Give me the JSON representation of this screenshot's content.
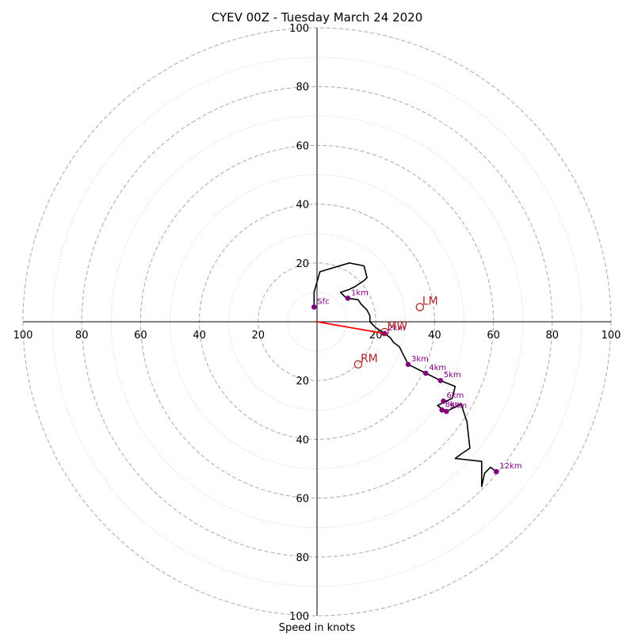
{
  "chart_data": {
    "type": "hodograph",
    "title": "CYEV 00Z - Tuesday March 24 2020",
    "xlabel": "Speed in knots",
    "range": 100,
    "ring_step": 20,
    "minor_ring_step": 10,
    "x_ticks": [
      "100",
      "80",
      "60",
      "40",
      "20",
      "20",
      "40",
      "60",
      "80",
      "100"
    ],
    "y_ticks": [
      "100",
      "80",
      "60",
      "40",
      "20",
      "20",
      "40",
      "60",
      "80",
      "100"
    ],
    "trace": [
      [
        -1,
        5
      ],
      [
        -1,
        10
      ],
      [
        1,
        17
      ],
      [
        11,
        20
      ],
      [
        16,
        19
      ],
      [
        17,
        15
      ],
      [
        16,
        14
      ],
      [
        13,
        12
      ],
      [
        11,
        11
      ],
      [
        8,
        10
      ],
      [
        9,
        9
      ],
      [
        10,
        8
      ],
      [
        10.5,
        8
      ],
      [
        14,
        7.5
      ],
      [
        15,
        6
      ],
      [
        17,
        4
      ],
      [
        18,
        2
      ],
      [
        18,
        0
      ],
      [
        20,
        -2
      ],
      [
        23,
        -4
      ],
      [
        25,
        -5.5
      ],
      [
        26,
        -7
      ],
      [
        28,
        -8.5
      ],
      [
        31,
        -14.5
      ],
      [
        37,
        -17.5
      ],
      [
        42,
        -20
      ],
      [
        47,
        -22
      ],
      [
        46,
        -26
      ],
      [
        41,
        -28.5
      ],
      [
        43,
        -30
      ],
      [
        44,
        -30.5
      ],
      [
        49,
        -28
      ],
      [
        51,
        -34
      ],
      [
        52,
        -43
      ],
      [
        49,
        -45
      ],
      [
        47,
        -46.5
      ],
      [
        56,
        -47.5
      ],
      [
        56,
        -56
      ],
      [
        57,
        -51.5
      ],
      [
        59,
        -49.5
      ],
      [
        61,
        -51
      ]
    ],
    "height_markers": [
      {
        "label": "Sfc",
        "u": -1,
        "v": 5
      },
      {
        "label": "1km",
        "u": 10.5,
        "v": 8
      },
      {
        "label": "2km",
        "u": 23,
        "v": -4
      },
      {
        "label": "3km",
        "u": 31,
        "v": -14.5
      },
      {
        "label": "4km",
        "u": 37,
        "v": -17.5
      },
      {
        "label": "5km",
        "u": 42,
        "v": -20
      },
      {
        "label": "6km",
        "u": 43,
        "v": -27
      },
      {
        "label": "8km",
        "u": 42.5,
        "v": -30
      },
      {
        "label": "9km",
        "u": 44,
        "v": -30.5
      },
      {
        "label": "12km",
        "u": 61,
        "v": -51
      }
    ],
    "motions": [
      {
        "label": "LM",
        "u": 35,
        "v": 5
      },
      {
        "label": "RM",
        "u": 14,
        "v": -14.5
      },
      {
        "label": "MW",
        "u": 23,
        "v": -3.5
      }
    ],
    "mean_wind_vector": {
      "u": 23,
      "v": -4
    },
    "colors": {
      "trace": "#000000",
      "markers": "#800080",
      "motion": "#b22222",
      "mean_wind": "#ff0000",
      "rings": "#b0b0b0",
      "axes": "#000000"
    }
  }
}
